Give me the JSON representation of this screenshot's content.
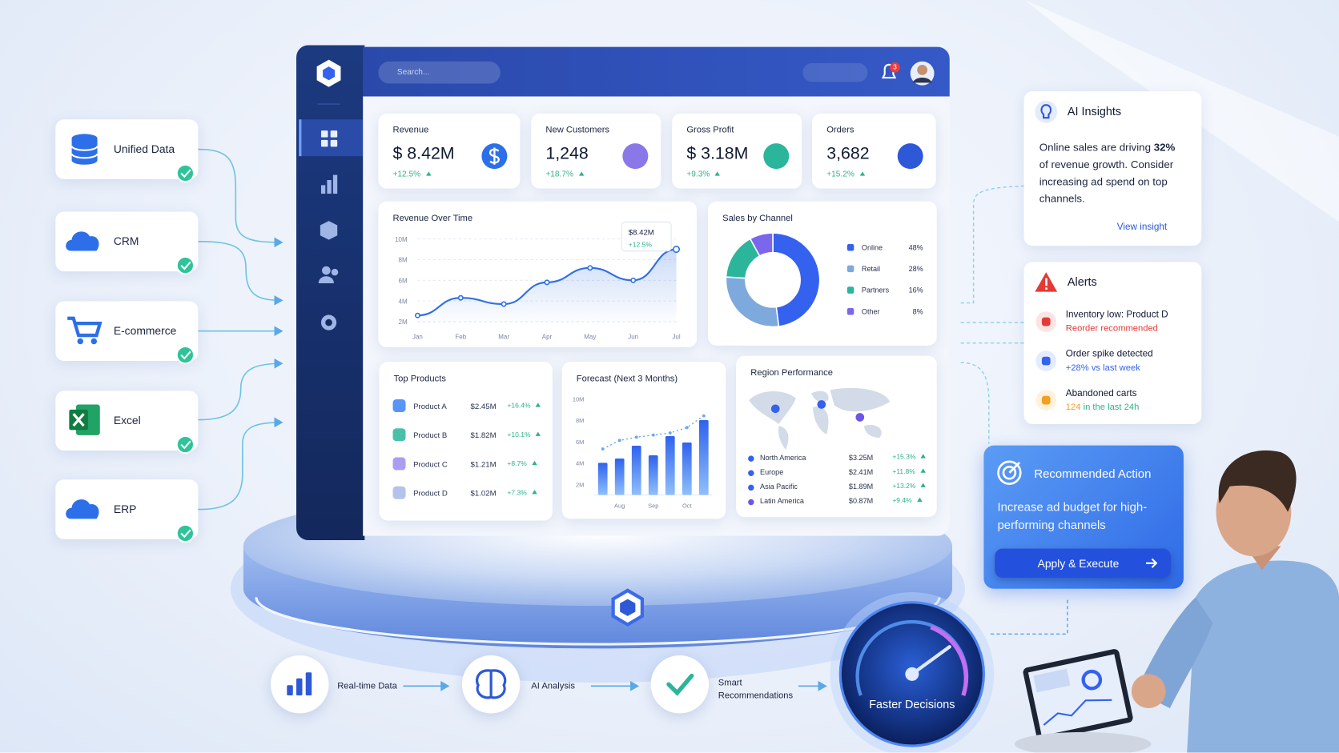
{
  "sources": [
    "Unified Data",
    "CRM",
    "E-commerce",
    "Excel",
    "ERP"
  ],
  "header": {
    "search": "Search...",
    "notifications": "3"
  },
  "kpis": [
    {
      "label": "Revenue",
      "value": "$ 8.42M",
      "change": "+12.5%"
    },
    {
      "label": "New Customers",
      "value": "1,248",
      "change": "+18.7%"
    },
    {
      "label": "Gross Profit",
      "value": "$ 3.18M",
      "change": "+9.3%"
    },
    {
      "label": "Orders",
      "value": "3,682",
      "change": "+15.2%"
    }
  ],
  "revenue_chart": {
    "type": "line",
    "title": "Revenue Over Time",
    "categories": [
      "Jan",
      "Feb",
      "Mar",
      "Apr",
      "May",
      "Jun",
      "Jul"
    ],
    "values": [
      2.6,
      4.3,
      3.7,
      5.8,
      7.2,
      6.0,
      9.0
    ],
    "color": "#2f6fe4",
    "ylim": [
      1.5,
      10.5
    ],
    "yticks": [
      {
        "value": 2,
        "label": "2M"
      },
      {
        "value": 4,
        "label": "4M"
      },
      {
        "value": 6,
        "label": "6M"
      },
      {
        "value": 8,
        "label": "8M"
      },
      {
        "value": 10,
        "label": "10M"
      }
    ],
    "tooltip": {
      "value": "$8.42M",
      "change": "+12.5%"
    }
  },
  "channel_chart": {
    "type": "pie",
    "title": "Sales by Channel",
    "categories": [
      "Online",
      "Retail",
      "Partners",
      "Other"
    ],
    "values": [
      48,
      28,
      16,
      8
    ],
    "value_labels": [
      "48%",
      "28%",
      "16%",
      "8%"
    ],
    "colors": [
      "#3461ee",
      "#7ea9dc",
      "#2bb59a",
      "#7b66ee"
    ]
  },
  "top_products": {
    "title": "Top Products",
    "rows": [
      [
        "Product A",
        "$2.45M",
        "+16.4%"
      ],
      [
        "Product B",
        "$1.82M",
        "+10.1%"
      ],
      [
        "Product C",
        "$1.21M",
        "+8.7%"
      ],
      [
        "Product D",
        "$1.02M",
        "+7.3%"
      ]
    ]
  },
  "forecast_chart": {
    "type": "bar",
    "title": "Forecast (Next 3 Months)",
    "categories": [
      null,
      "Aug",
      null,
      "Sep",
      null,
      "Oct",
      null
    ],
    "values": [
      4.0,
      4.4,
      5.6,
      4.7,
      6.5,
      5.9,
      8.0
    ],
    "trend": [
      5.3,
      6.1,
      6.4,
      6.6,
      6.8,
      7.3,
      8.4
    ],
    "ylim": [
      1,
      10.5
    ],
    "yticks": [
      {
        "value": 2,
        "label": "2M"
      },
      {
        "value": 4,
        "label": "4M"
      },
      {
        "value": 6,
        "label": "6M"
      },
      {
        "value": 8,
        "label": "8M"
      },
      {
        "value": 10,
        "label": "10M"
      }
    ]
  },
  "regions": {
    "title": "Region Performance",
    "rows": [
      [
        "North America",
        "$3.25M",
        "+15.3%"
      ],
      [
        "Europe",
        "$2.41M",
        "+11.8%"
      ],
      [
        "Asia Pacific",
        "$1.89M",
        "+13.2%"
      ],
      [
        "Latin America",
        "$0.87M",
        "+9.4%"
      ]
    ]
  },
  "insights": {
    "title": "AI Insights",
    "before": "Online sales are driving",
    "highlight": "32%",
    "after": "of revenue growth. Consider increasing ad spend on top channels.",
    "link": "View insight"
  },
  "alerts": {
    "title": "Alerts",
    "items": [
      {
        "title": "Inventory low: Product D",
        "detail": "Reorder recommended"
      },
      {
        "title": "Order spike detected",
        "detail": "+28% vs last week"
      },
      {
        "title": "Abandoned carts",
        "count": "124",
        "detail": "in the last 24h"
      }
    ]
  },
  "action": {
    "title": "Recommended Action",
    "text": "Increase ad budget for high-performing channels",
    "button": "Apply & Execute"
  },
  "pipeline": [
    "Real-time Data",
    "AI Analysis",
    "Smart Recommendations"
  ],
  "badge": "Faster Decisions"
}
